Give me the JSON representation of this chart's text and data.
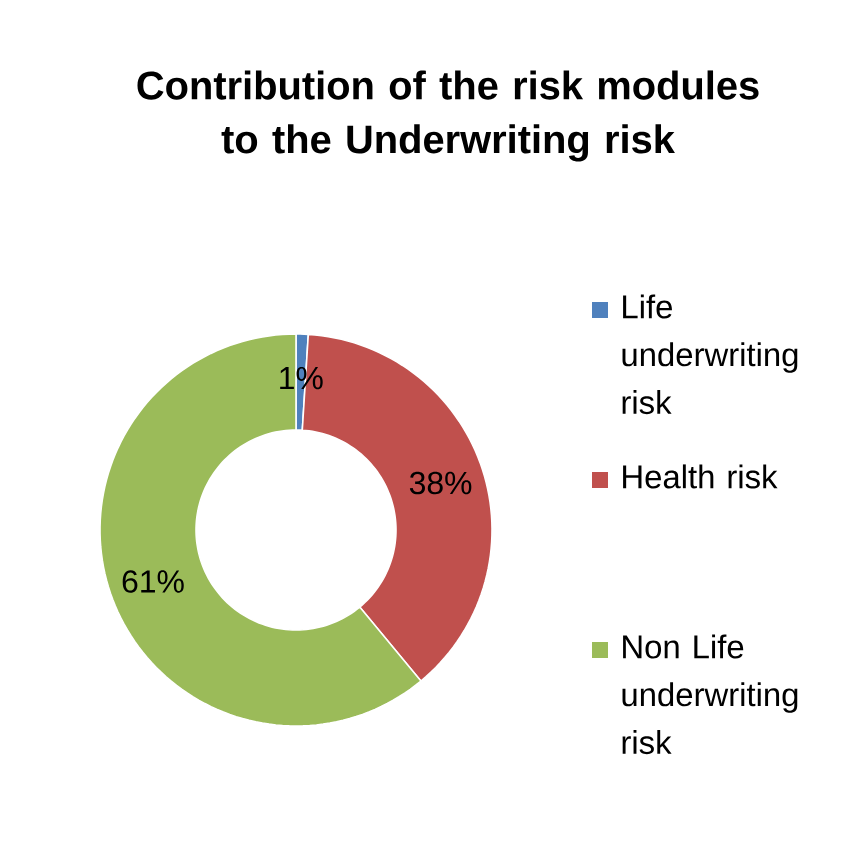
{
  "chart_data": {
    "type": "donut",
    "title": "Contribution of the risk modules to the Underwriting risk",
    "categories": [
      "Life underwriting risk",
      "Health risk",
      "Non Life underwriting risk"
    ],
    "values": [
      1,
      38,
      61
    ],
    "colors": [
      "#4f81bd",
      "#c0504d",
      "#9bbb59"
    ],
    "value_labels": [
      "1%",
      "38%",
      "61%"
    ],
    "legend": "right"
  }
}
